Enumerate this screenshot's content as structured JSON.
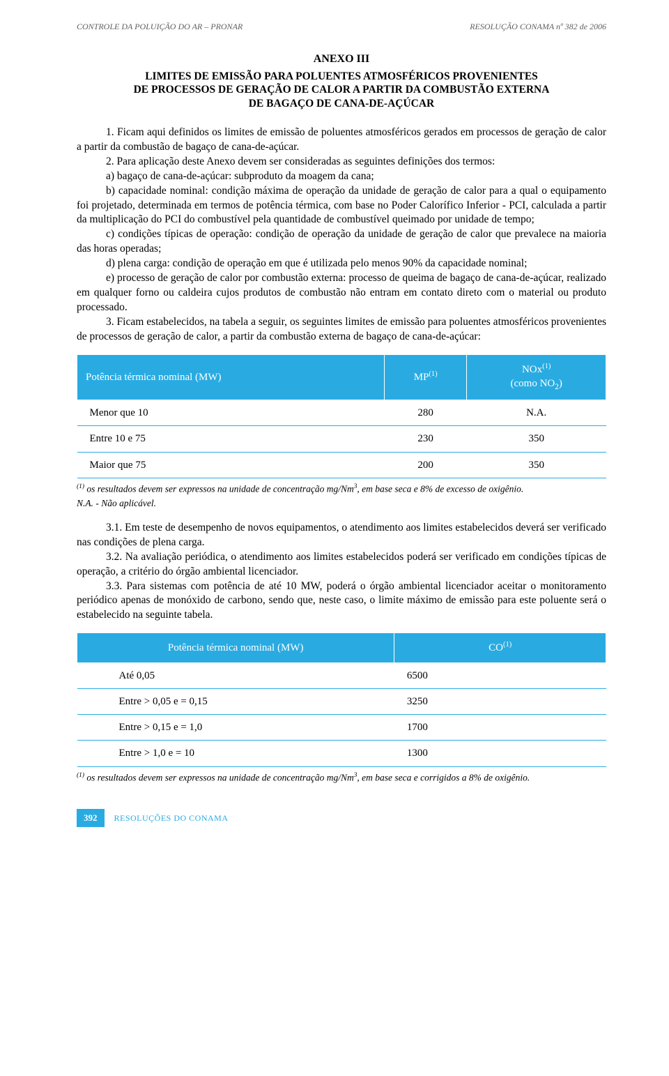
{
  "header": {
    "left": "CONTROLE DA POLUIÇÃO DO AR – PRONAR",
    "right": "RESOLUÇÃO CONAMA nº 382 de 2006"
  },
  "annex": {
    "title": "ANEXO III",
    "subtitle_l1": "LIMITES DE EMISSÃO PARA POLUENTES ATMOSFÉRICOS PROVENIENTES",
    "subtitle_l2": "DE PROCESSOS DE GERAÇÃO DE CALOR A PARTIR DA COMBUSTÃO EXTERNA",
    "subtitle_l3": "DE BAGAÇO DE CANA-DE-AÇÚCAR"
  },
  "paras": {
    "p1": "1. Ficam aqui definidos os limites de emissão de poluentes atmosféricos gerados em processos de geração de calor a partir da combustão de bagaço de cana-de-açúcar.",
    "p2": "2. Para aplicação deste Anexo devem ser consideradas as seguintes definições dos termos:",
    "p2a": "a) bagaço de cana-de-açúcar: subproduto da moagem da cana;",
    "p2b": "b) capacidade nominal: condição máxima de operação da unidade de geração de calor para a qual o equipamento foi projetado, determinada em termos de potência térmica, com base no Poder Calorífico Inferior - PCI, calculada a partir da multiplicação do PCI do combustível pela quantidade de combustível queimado por unidade de tempo;",
    "p2c": "c) condições típicas de operação: condição de operação da unidade de geração de calor que prevalece na maioria das horas operadas;",
    "p2d": "d) plena carga: condição de operação em que é utilizada pelo menos 90% da capacidade nominal;",
    "p2e": "e) processo de geração de calor por combustão externa: processo de queima de bagaço de cana-de-açúcar, realizado em qualquer forno ou caldeira cujos produtos de combustão não entram em contato direto com o material ou produto processado.",
    "p3": "3. Ficam estabelecidos, na tabela a seguir, os seguintes limites de emissão para poluentes atmosféricos provenientes de processos de geração de calor, a partir da combustão externa de bagaço de cana-de-açúcar:",
    "p31": "3.1. Em teste de desempenho de novos equipamentos, o atendimento aos limites estabelecidos deverá ser verificado nas condições de plena carga.",
    "p32": "3.2. Na avaliação periódica, o atendimento aos limites estabelecidos poderá ser verificado em condições típicas de operação, a critério do órgão ambiental licenciador.",
    "p33": "3.3. Para sistemas com potência de até 10 MW, poderá o órgão ambiental licenciador aceitar o monitoramento periódico apenas de monóxido de carbono, sendo que, neste caso, o limite máximo de emissão para este poluente será o estabelecido na seguinte tabela."
  },
  "table1": {
    "header_bg": "#29abe2",
    "header_fg": "#ffffff",
    "row_border": "#29abe2",
    "columns": [
      {
        "label_html": "Potência térmica nominal (MW)"
      },
      {
        "label_html": "MP<sup>(1)</sup>"
      },
      {
        "label_html": "NOx<sup>(1)</sup><br>(como NO<sub>2</sub>)"
      }
    ],
    "rows": [
      [
        "Menor que 10",
        "280",
        "N.A."
      ],
      [
        "Entre 10 e 75",
        "230",
        "350"
      ],
      [
        "Maior que 75",
        "200",
        "350"
      ]
    ],
    "note1_html": "<sup>(1)</sup> os resultados devem ser expressos na unidade de concentração mg/Nm<sup>3</sup>, em base seca e 8% de excesso de oxigênio.",
    "note2": "N.A. - Não aplicável."
  },
  "table2": {
    "header_bg": "#29abe2",
    "header_fg": "#ffffff",
    "row_border": "#29abe2",
    "columns": [
      {
        "label_html": "Potência térmica nominal (MW)"
      },
      {
        "label_html": "CO<sup>(1)</sup>"
      }
    ],
    "rows": [
      [
        "Até 0,05",
        "6500"
      ],
      [
        "Entre > 0,05 e = 0,15",
        "3250"
      ],
      [
        "Entre > 0,15 e = 1,0",
        "1700"
      ],
      [
        "Entre > 1,0 e = 10",
        "1300"
      ]
    ],
    "note1_html": "<sup>(1)</sup> os resultados devem ser expressos na unidade de concentração mg/Nm<sup>3</sup>, em base seca e corrigidos a 8% de oxigênio."
  },
  "footer": {
    "page": "392",
    "text": "RESOLUÇÕES DO CONAMA"
  }
}
